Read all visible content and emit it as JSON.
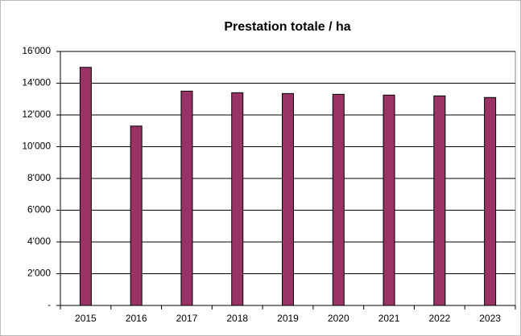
{
  "chart_data": {
    "type": "bar",
    "title": "Prestation totale / ha",
    "categories": [
      "2015",
      "2016",
      "2017",
      "2018",
      "2019",
      "2020",
      "2021",
      "2022",
      "2023"
    ],
    "values": [
      15000,
      11300,
      13500,
      13400,
      13350,
      13300,
      13250,
      13200,
      13100
    ],
    "color": "#993366",
    "ylim": [
      0,
      16000
    ],
    "yticks": [
      {
        "value": 0,
        "label": "-"
      },
      {
        "value": 2000,
        "label": "2'000"
      },
      {
        "value": 4000,
        "label": "4'000"
      },
      {
        "value": 6000,
        "label": "6'000"
      },
      {
        "value": 8000,
        "label": "8'000"
      },
      {
        "value": 10000,
        "label": "10'000"
      },
      {
        "value": 12000,
        "label": "12'000"
      },
      {
        "value": 14000,
        "label": "14'000"
      },
      {
        "value": 16000,
        "label": "16'000"
      }
    ],
    "grid": true
  }
}
